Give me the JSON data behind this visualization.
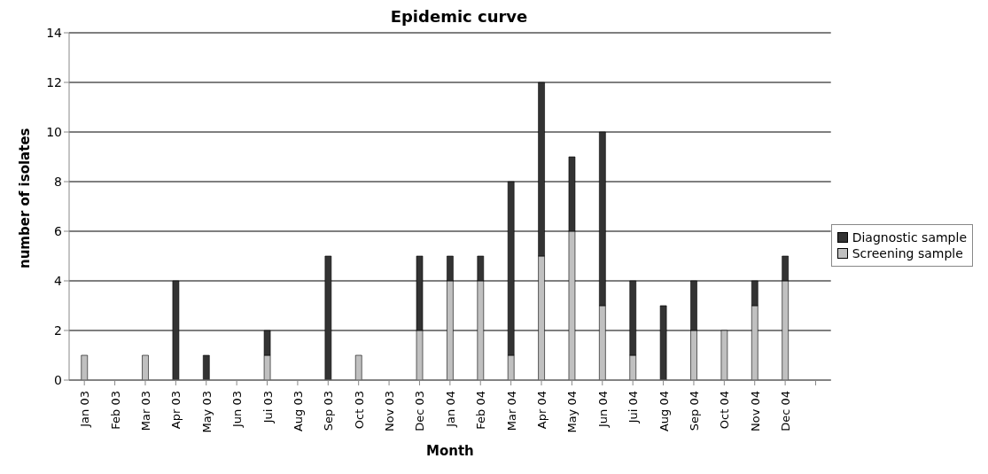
{
  "chart_data": {
    "type": "bar",
    "title": "Epidemic curve",
    "xlabel": "Month",
    "ylabel": "number of isolates",
    "categories": [
      "Jan 03",
      "Feb 03",
      "Mar 03",
      "Apr 03",
      "May 03",
      "Jun 03",
      "Jui 03",
      "Aug 03",
      "Sep 03",
      "Oct 03",
      "Nov 03",
      "Dec 03",
      "Jan 04",
      "Feb 04",
      "Mar 04",
      "Apr 04",
      "May 04",
      "Jun 04",
      "Jui 04",
      "Aug 04",
      "Sep 04",
      "Oct 04",
      "Nov 04",
      "Dec 04",
      null
    ],
    "series": [
      {
        "name": "Screening sample",
        "color": "#c0c0c0",
        "values": [
          1,
          0,
          1,
          0,
          0,
          0,
          1,
          0,
          0,
          1,
          0,
          2,
          4,
          4,
          1,
          5,
          6,
          3,
          1,
          0,
          2,
          2,
          3,
          4,
          null
        ]
      },
      {
        "name": "Diagnostic sample",
        "color": "#333333",
        "values": [
          0,
          0,
          0,
          4,
          1,
          0,
          1,
          0,
          5,
          0,
          0,
          3,
          1,
          1,
          7,
          7,
          3,
          7,
          3,
          3,
          2,
          0,
          1,
          1,
          null
        ]
      }
    ],
    "stacked": true,
    "ylim": [
      0,
      14
    ],
    "yticks": [
      0,
      2,
      4,
      6,
      8,
      10,
      12,
      14
    ],
    "grid": "y",
    "legend": "right"
  }
}
